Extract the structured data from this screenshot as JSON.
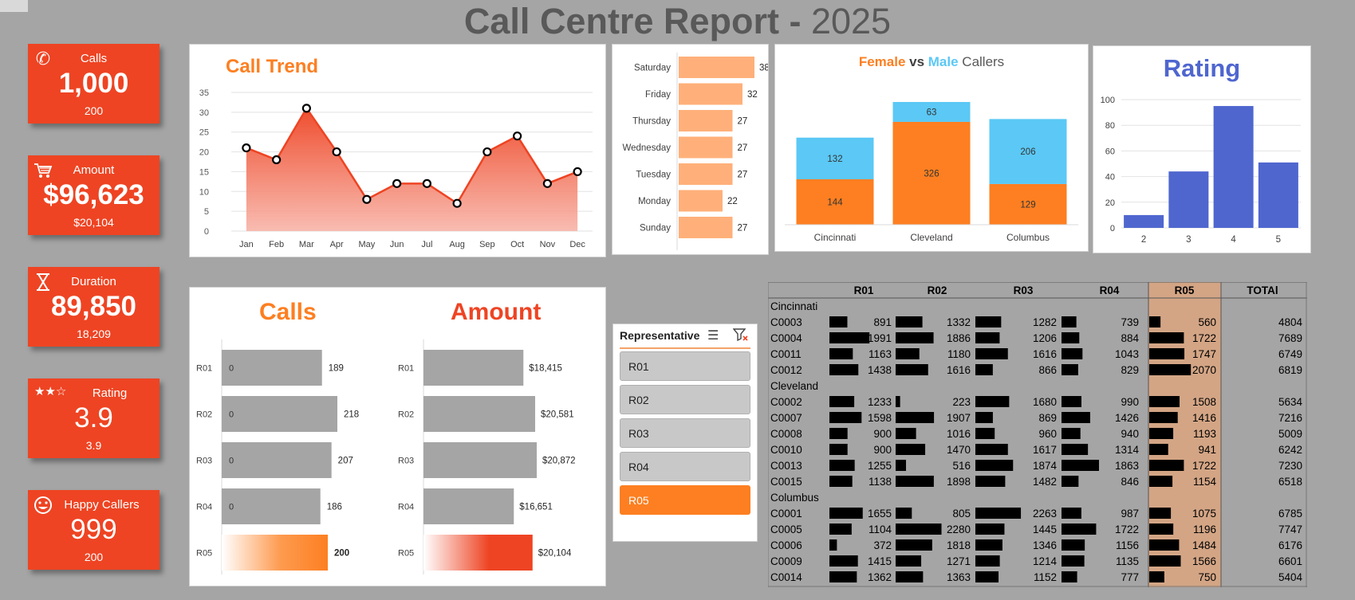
{
  "header": {
    "title": "Call Centre Report - ",
    "year": "2025"
  },
  "kpis": [
    {
      "label": "Calls",
      "value": "1,000",
      "sub": "200",
      "icon": "phone-icon"
    },
    {
      "label": "Amount",
      "value": "$96,623",
      "sub": "$20,104",
      "icon": "cart-icon"
    },
    {
      "label": "Duration",
      "value": "89,850",
      "sub": "18,209",
      "icon": "hourglass-icon"
    },
    {
      "label": "Rating",
      "value": "3.9",
      "sub": "3.9",
      "icon": "stars-icon"
    },
    {
      "label": "Happy Callers",
      "value": "999",
      "sub": "200",
      "icon": "smiley-icon"
    }
  ],
  "colors": {
    "kpi": "#ee4423",
    "orange": "#fd7f21",
    "lightOrange": "#ffb07a",
    "blue": "#5bc8f5",
    "rating": "#4f66cf",
    "gray": "#a5a5a5",
    "amountRed": "#ee4423"
  },
  "chart_data": [
    {
      "type": "area",
      "title": "Call Trend",
      "categories": [
        "Jan",
        "Feb",
        "Mar",
        "Apr",
        "May",
        "Jun",
        "Jul",
        "Aug",
        "Sep",
        "Oct",
        "Nov",
        "Dec"
      ],
      "values": [
        21,
        18,
        31,
        20,
        8,
        12,
        12,
        7,
        20,
        24,
        12,
        15
      ],
      "ylim": [
        0,
        35
      ],
      "yticks": [
        "0",
        "5",
        "10",
        "15",
        "20",
        "25",
        "30",
        "35"
      ],
      "grid": true
    },
    {
      "type": "bar",
      "orientation": "horizontal",
      "categories": [
        "Saturday",
        "Friday",
        "Thursday",
        "Wednesday",
        "Tuesday",
        "Monday",
        "Sunday"
      ],
      "values": [
        38,
        32,
        27,
        27,
        27,
        22,
        27
      ]
    },
    {
      "type": "bar",
      "stacked": true,
      "title": {
        "part1": "Female",
        "part2": " vs ",
        "part3": "Male",
        "part4": " Callers"
      },
      "categories": [
        "Cincinnati",
        "Cleveland",
        "Columbus"
      ],
      "series": [
        {
          "name": "Female",
          "values": [
            144,
            326,
            129
          ]
        },
        {
          "name": "Male",
          "values": [
            132,
            63,
            206
          ]
        }
      ]
    },
    {
      "type": "bar",
      "title": "Rating",
      "categories": [
        "2",
        "3",
        "4",
        "5"
      ],
      "values": [
        10,
        44,
        95,
        51
      ],
      "ylim": [
        0,
        100
      ],
      "yticks": [
        "0",
        "20",
        "40",
        "60",
        "80",
        "100"
      ],
      "grid": true
    },
    {
      "type": "bar",
      "orientation": "horizontal",
      "title": "Calls",
      "categories": [
        "R01",
        "R02",
        "R03",
        "R04",
        "R05"
      ],
      "values": [
        189,
        218,
        207,
        186,
        200
      ],
      "labels": [
        "189",
        "218",
        "207",
        "186",
        "200"
      ],
      "inner_label": "0",
      "highlight": "R05"
    },
    {
      "type": "bar",
      "orientation": "horizontal",
      "title": "Amount",
      "categories": [
        "R01",
        "R02",
        "R03",
        "R04",
        "R05"
      ],
      "values": [
        18415,
        20581,
        20872,
        16651,
        20104
      ],
      "labels": [
        "$18,415",
        "$20,581",
        "$20,872",
        "$16,651",
        "$20,104"
      ],
      "highlight": "R05"
    }
  ],
  "slicer": {
    "title": "Representative",
    "items": [
      "R01",
      "R02",
      "R03",
      "R04",
      "R05"
    ],
    "selected": "R05"
  },
  "table": {
    "headers": [
      "",
      "R01",
      "R02",
      "R03",
      "R04",
      "R05",
      "TOTAl"
    ],
    "groups": [
      {
        "name": "Cincinnati",
        "rows": [
          {
            "id": "C0003",
            "vals": [
              891,
              1332,
              1282,
              739,
              560
            ],
            "total": "4804"
          },
          {
            "id": "C0004",
            "vals": [
              1991,
              1886,
              1206,
              884,
              1722
            ],
            "total": "7689"
          },
          {
            "id": "C0011",
            "vals": [
              1163,
              1180,
              1616,
              1043,
              1747
            ],
            "total": "6749"
          },
          {
            "id": "C0012",
            "vals": [
              1438,
              1616,
              866,
              829,
              2070
            ],
            "total": "6819"
          }
        ]
      },
      {
        "name": "Cleveland",
        "rows": [
          {
            "id": "C0002",
            "vals": [
              1233,
              223,
              1680,
              990,
              1508
            ],
            "total": "5634"
          },
          {
            "id": "C0007",
            "vals": [
              1598,
              1907,
              869,
              1426,
              1416
            ],
            "total": "7216"
          },
          {
            "id": "C0008",
            "vals": [
              900,
              1016,
              960,
              940,
              1193
            ],
            "total": "5009"
          },
          {
            "id": "C0010",
            "vals": [
              900,
              1470,
              1617,
              1314,
              941
            ],
            "total": "6242"
          },
          {
            "id": "C0013",
            "vals": [
              1255,
              516,
              1874,
              1863,
              1722
            ],
            "total": "7230"
          },
          {
            "id": "C0015",
            "vals": [
              1138,
              1898,
              1482,
              846,
              1154
            ],
            "total": "6518"
          }
        ]
      },
      {
        "name": "Columbus",
        "rows": [
          {
            "id": "C0001",
            "vals": [
              1655,
              805,
              2263,
              987,
              1075
            ],
            "total": "6785"
          },
          {
            "id": "C0005",
            "vals": [
              1104,
              2280,
              1445,
              1722,
              1196
            ],
            "total": "7747"
          },
          {
            "id": "C0006",
            "vals": [
              372,
              1818,
              1346,
              1156,
              1484
            ],
            "total": "6176"
          },
          {
            "id": "C0009",
            "vals": [
              1415,
              1271,
              1214,
              1135,
              1566
            ],
            "total": "6601"
          },
          {
            "id": "C0014",
            "vals": [
              1362,
              1363,
              1152,
              777,
              750
            ],
            "total": "5404"
          }
        ]
      }
    ]
  }
}
